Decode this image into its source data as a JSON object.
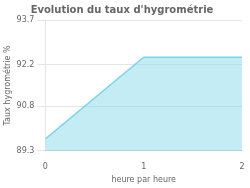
{
  "chart_data": {
    "type": "area",
    "title": "Evolution du taux d'hygrométrie",
    "xlabel": "heure par heure",
    "ylabel": "Taux hygrométrie %",
    "x": [
      0,
      1,
      2
    ],
    "values": [
      89.7,
      92.45,
      92.45
    ],
    "color": "#7dd4e8",
    "xlim": [
      0,
      2
    ],
    "xticks": [
      0,
      1,
      2
    ],
    "ylim": [
      89.3,
      93.7
    ],
    "yticks": [
      89.3,
      90.8,
      92.2,
      93.7
    ],
    "grid": "y"
  }
}
